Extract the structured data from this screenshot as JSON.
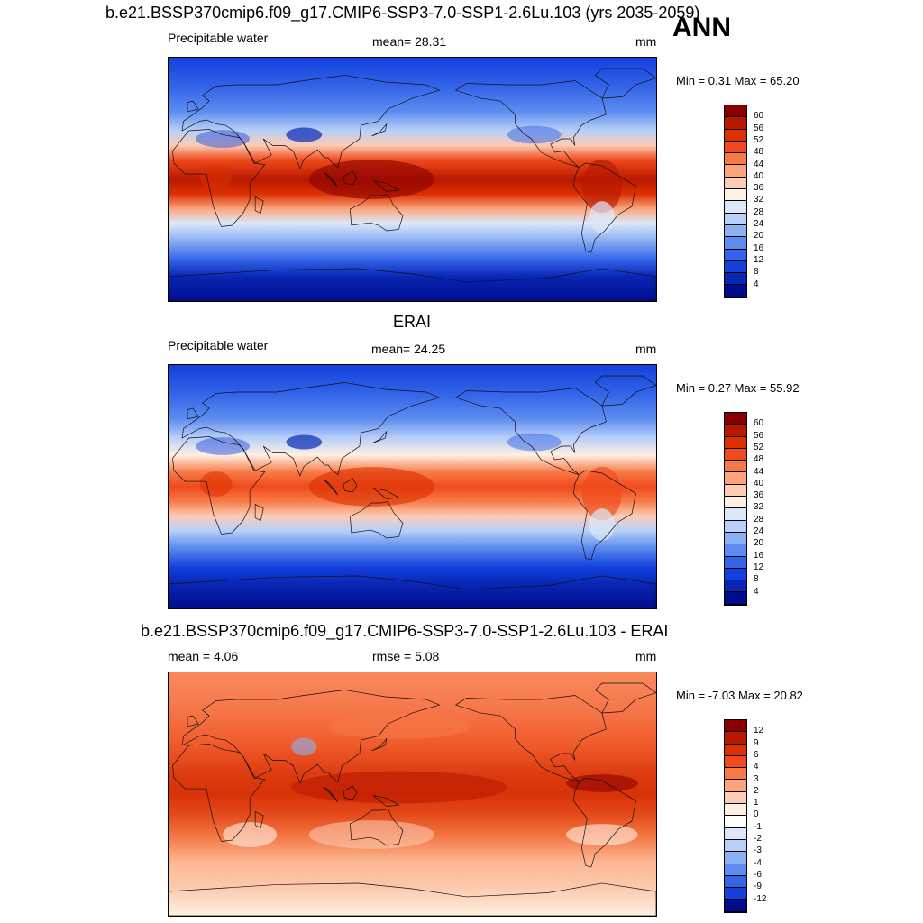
{
  "season": "ANN",
  "panels": [
    {
      "title": "b.e21.BSSP370cmip6.f09_g17.CMIP6-SSP3-7.0-SSP1-2.6Lu.103 (yrs 2035-2059)",
      "left_label": "Precipitable water",
      "center_label": "mean=  28.31",
      "unit": "mm",
      "minmax": "Min =   0.31 Max =  65.20",
      "type": "model",
      "colorbar": {
        "labels": [
          "60",
          "56",
          "52",
          "48",
          "44",
          "40",
          "36",
          "32",
          "28",
          "24",
          "20",
          "16",
          "12",
          "8",
          "4"
        ],
        "colors": [
          "#8a0000",
          "#b81800",
          "#dc3000",
          "#f04a1c",
          "#f87a48",
          "#fca47c",
          "#fcccb4",
          "#fff0e4",
          "#dce8fa",
          "#b8d0f8",
          "#8cb0f4",
          "#5c8cf0",
          "#3464e8",
          "#1440dc",
          "#0826b4",
          "#000c8c"
        ]
      }
    },
    {
      "title": "ERAI",
      "left_label": "Precipitable water",
      "center_label": "mean=  24.25",
      "unit": "mm",
      "minmax": "Min =   0.27 Max =  55.92",
      "type": "obs",
      "colorbar": {
        "labels": [
          "60",
          "56",
          "52",
          "48",
          "44",
          "40",
          "36",
          "32",
          "28",
          "24",
          "20",
          "16",
          "12",
          "8",
          "4"
        ],
        "colors": [
          "#8a0000",
          "#b81800",
          "#dc3000",
          "#f04a1c",
          "#f87a48",
          "#fca47c",
          "#fcccb4",
          "#fff0e4",
          "#dce8fa",
          "#b8d0f8",
          "#8cb0f4",
          "#5c8cf0",
          "#3464e8",
          "#1440dc",
          "#0826b4",
          "#000c8c"
        ]
      }
    },
    {
      "title": "b.e21.BSSP370cmip6.f09_g17.CMIP6-SSP3-7.0-SSP1-2.6Lu.103 - ERAI",
      "left_label": "mean =   4.06",
      "center_label": "rmse =   5.08",
      "unit": "mm",
      "minmax": "Min =  -7.03 Max =  20.82",
      "type": "diff",
      "colorbar": {
        "labels": [
          "12",
          "9",
          "6",
          "4",
          "3",
          "2",
          "1",
          "0",
          "-1",
          "-2",
          "-3",
          "-4",
          "-6",
          "-9",
          "-12"
        ],
        "colors": [
          "#8a0000",
          "#b81800",
          "#dc3000",
          "#f04a1c",
          "#f87a48",
          "#fca47c",
          "#fcccb4",
          "#fff0e4",
          "#ffffff",
          "#dce8fa",
          "#b8d0f8",
          "#8cb0f4",
          "#5c8cf0",
          "#3464e8",
          "#1440dc",
          "#000c8c"
        ]
      }
    }
  ]
}
